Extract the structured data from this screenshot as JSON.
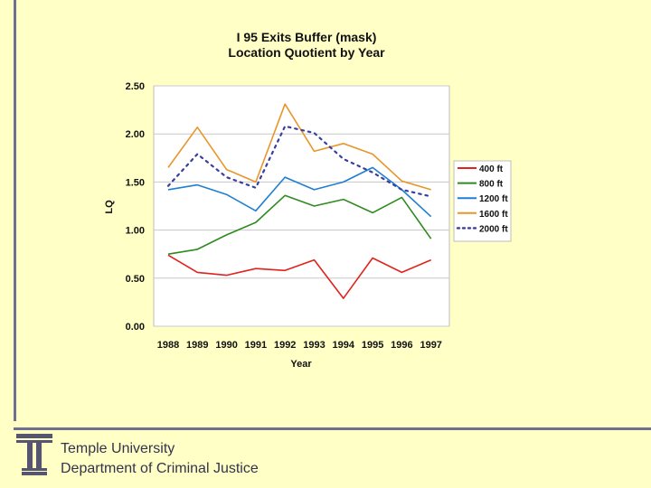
{
  "footer": {
    "line1": "Temple University",
    "line2": "Department of Criminal Justice"
  },
  "colors": {
    "background": "#ffffc6",
    "rule": "#6f6f8f",
    "logo": "#55556f"
  },
  "chart_data": {
    "type": "line",
    "title": "I 95 Exits Buffer (mask)",
    "subtitle": "Location Quotient by Year",
    "xlabel": "Year",
    "ylabel": "LQ",
    "categories": [
      "1988",
      "1989",
      "1990",
      "1991",
      "1992",
      "1993",
      "1994",
      "1995",
      "1996",
      "1997"
    ],
    "ylim": [
      0,
      2.5
    ],
    "yticks": [
      "0.00",
      "0.50",
      "1.00",
      "1.50",
      "2.00",
      "2.50"
    ],
    "grid": true,
    "legend_position": "right",
    "series": [
      {
        "name": "400 ft",
        "color": "#e0231c",
        "dashed": false,
        "values": [
          0.74,
          0.56,
          0.53,
          0.6,
          0.58,
          0.69,
          0.29,
          0.71,
          0.56,
          0.69
        ]
      },
      {
        "name": "800 ft",
        "color": "#2e8b1e",
        "dashed": false,
        "values": [
          0.75,
          0.8,
          0.95,
          1.08,
          1.36,
          1.25,
          1.32,
          1.18,
          1.34,
          0.91
        ]
      },
      {
        "name": "1200 ft",
        "color": "#1f7fd1",
        "dashed": false,
        "values": [
          1.42,
          1.47,
          1.37,
          1.2,
          1.55,
          1.42,
          1.5,
          1.65,
          1.42,
          1.14
        ]
      },
      {
        "name": "1600 ft",
        "color": "#e8962a",
        "dashed": false,
        "values": [
          1.65,
          2.07,
          1.63,
          1.5,
          2.31,
          1.82,
          1.9,
          1.79,
          1.51,
          1.42
        ]
      },
      {
        "name": "2000 ft",
        "color": "#3a3f9e",
        "dashed": true,
        "values": [
          1.46,
          1.79,
          1.55,
          1.44,
          2.08,
          2.01,
          1.74,
          1.6,
          1.42,
          1.35
        ]
      }
    ]
  }
}
